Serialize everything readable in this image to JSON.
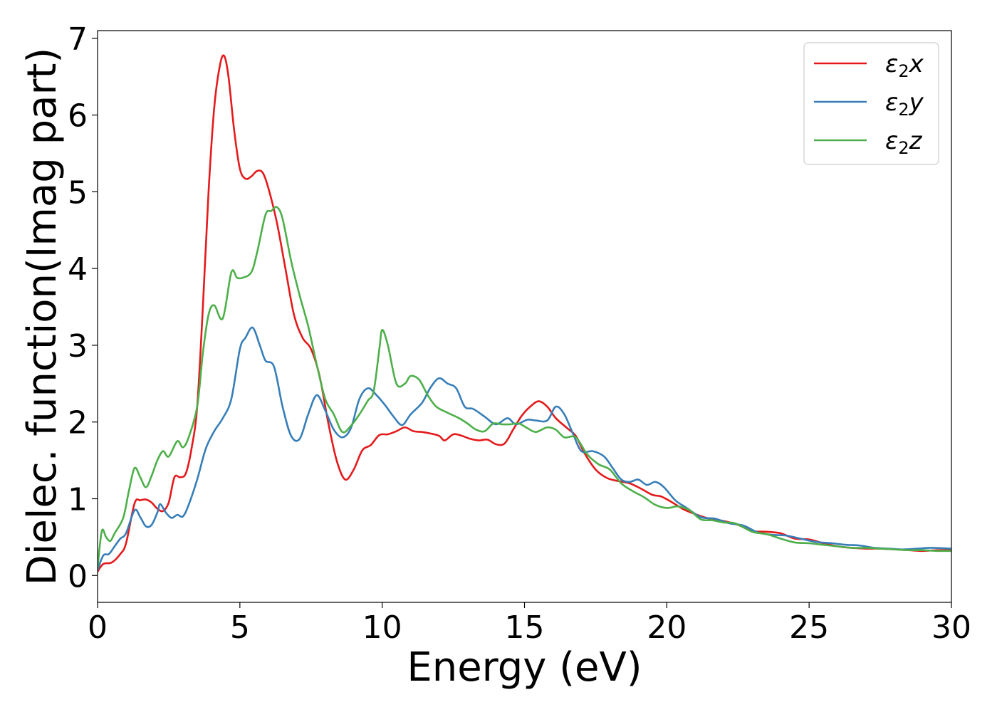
{
  "chart_data": {
    "type": "line",
    "xlabel": "Energy (eV)",
    "ylabel": "Dielec. function(Imag part)",
    "xlim": [
      0,
      30
    ],
    "ylim": [
      -0.35,
      7.1
    ],
    "xticks": [
      0,
      5,
      10,
      15,
      20,
      25,
      30
    ],
    "yticks": [
      0,
      1,
      2,
      3,
      4,
      5,
      6,
      7
    ],
    "grid": false,
    "legend_position": "top-right",
    "series": [
      {
        "name": "ε₂x",
        "legend_base": "ε",
        "legend_sub": "2",
        "legend_var": "x",
        "color": "#e41a1c",
        "points": [
          [
            0,
            0.05
          ],
          [
            0.2,
            0.15
          ],
          [
            0.5,
            0.17
          ],
          [
            0.8,
            0.28
          ],
          [
            1.0,
            0.42
          ],
          [
            1.3,
            0.94
          ],
          [
            1.5,
            0.98
          ],
          [
            1.7,
            0.99
          ],
          [
            1.9,
            0.95
          ],
          [
            2.1,
            0.87
          ],
          [
            2.3,
            0.84
          ],
          [
            2.5,
            0.95
          ],
          [
            2.7,
            1.28
          ],
          [
            2.9,
            1.28
          ],
          [
            3.1,
            1.33
          ],
          [
            3.3,
            1.65
          ],
          [
            3.5,
            2.2
          ],
          [
            3.7,
            3.5
          ],
          [
            3.9,
            5.0
          ],
          [
            4.1,
            6.1
          ],
          [
            4.3,
            6.65
          ],
          [
            4.45,
            6.77
          ],
          [
            4.6,
            6.5
          ],
          [
            4.8,
            5.8
          ],
          [
            5.0,
            5.3
          ],
          [
            5.2,
            5.17
          ],
          [
            5.4,
            5.2
          ],
          [
            5.6,
            5.27
          ],
          [
            5.8,
            5.25
          ],
          [
            6.0,
            5.05
          ],
          [
            6.3,
            4.6
          ],
          [
            6.6,
            4.0
          ],
          [
            6.9,
            3.4
          ],
          [
            7.2,
            3.1
          ],
          [
            7.5,
            2.95
          ],
          [
            7.8,
            2.6
          ],
          [
            8.1,
            2.0
          ],
          [
            8.4,
            1.5
          ],
          [
            8.7,
            1.25
          ],
          [
            9.0,
            1.38
          ],
          [
            9.3,
            1.63
          ],
          [
            9.6,
            1.7
          ],
          [
            9.9,
            1.83
          ],
          [
            10.2,
            1.84
          ],
          [
            10.5,
            1.88
          ],
          [
            10.8,
            1.93
          ],
          [
            11.1,
            1.88
          ],
          [
            11.4,
            1.87
          ],
          [
            11.7,
            1.85
          ],
          [
            12.0,
            1.82
          ],
          [
            12.2,
            1.76
          ],
          [
            12.5,
            1.84
          ],
          [
            12.8,
            1.82
          ],
          [
            13.1,
            1.78
          ],
          [
            13.4,
            1.76
          ],
          [
            13.7,
            1.77
          ],
          [
            14.0,
            1.71
          ],
          [
            14.3,
            1.72
          ],
          [
            14.6,
            1.9
          ],
          [
            14.9,
            2.08
          ],
          [
            15.2,
            2.2
          ],
          [
            15.5,
            2.27
          ],
          [
            15.8,
            2.2
          ],
          [
            16.1,
            2.05
          ],
          [
            16.5,
            1.92
          ],
          [
            16.8,
            1.82
          ],
          [
            17.1,
            1.6
          ],
          [
            17.5,
            1.38
          ],
          [
            17.9,
            1.27
          ],
          [
            18.3,
            1.23
          ],
          [
            18.7,
            1.2
          ],
          [
            19.1,
            1.13
          ],
          [
            19.5,
            1.05
          ],
          [
            19.8,
            1.03
          ],
          [
            20.2,
            0.95
          ],
          [
            20.6,
            0.86
          ],
          [
            21.0,
            0.8
          ],
          [
            21.5,
            0.74
          ],
          [
            22.0,
            0.71
          ],
          [
            22.5,
            0.66
          ],
          [
            23.0,
            0.58
          ],
          [
            23.5,
            0.57
          ],
          [
            24.0,
            0.55
          ],
          [
            24.5,
            0.48
          ],
          [
            25.0,
            0.47
          ],
          [
            25.5,
            0.42
          ],
          [
            26.0,
            0.38
          ],
          [
            26.5,
            0.36
          ],
          [
            27.0,
            0.35
          ],
          [
            27.5,
            0.35
          ],
          [
            28.0,
            0.34
          ],
          [
            28.5,
            0.33
          ],
          [
            29.0,
            0.32
          ],
          [
            29.5,
            0.33
          ],
          [
            30,
            0.33
          ]
        ]
      },
      {
        "name": "ε₂y",
        "legend_base": "ε",
        "legend_sub": "2",
        "legend_var": "y",
        "color": "#377eb8",
        "points": [
          [
            0,
            0.07
          ],
          [
            0.2,
            0.26
          ],
          [
            0.4,
            0.28
          ],
          [
            0.6,
            0.38
          ],
          [
            0.8,
            0.48
          ],
          [
            1.0,
            0.55
          ],
          [
            1.3,
            0.85
          ],
          [
            1.5,
            0.76
          ],
          [
            1.7,
            0.64
          ],
          [
            1.9,
            0.66
          ],
          [
            2.1,
            0.82
          ],
          [
            2.2,
            0.93
          ],
          [
            2.4,
            0.82
          ],
          [
            2.6,
            0.75
          ],
          [
            2.8,
            0.79
          ],
          [
            3.0,
            0.77
          ],
          [
            3.2,
            0.92
          ],
          [
            3.5,
            1.25
          ],
          [
            3.8,
            1.65
          ],
          [
            4.1,
            1.88
          ],
          [
            4.4,
            2.05
          ],
          [
            4.7,
            2.3
          ],
          [
            5.0,
            2.95
          ],
          [
            5.2,
            3.1
          ],
          [
            5.45,
            3.23
          ],
          [
            5.7,
            3.0
          ],
          [
            5.9,
            2.8
          ],
          [
            6.2,
            2.72
          ],
          [
            6.5,
            2.2
          ],
          [
            6.8,
            1.82
          ],
          [
            7.1,
            1.78
          ],
          [
            7.4,
            2.1
          ],
          [
            7.7,
            2.35
          ],
          [
            8.0,
            2.15
          ],
          [
            8.3,
            1.9
          ],
          [
            8.6,
            1.8
          ],
          [
            8.9,
            1.92
          ],
          [
            9.2,
            2.3
          ],
          [
            9.5,
            2.44
          ],
          [
            9.8,
            2.35
          ],
          [
            10.1,
            2.22
          ],
          [
            10.4,
            2.07
          ],
          [
            10.7,
            1.96
          ],
          [
            11.0,
            2.1
          ],
          [
            11.4,
            2.25
          ],
          [
            11.7,
            2.45
          ],
          [
            12.0,
            2.57
          ],
          [
            12.3,
            2.5
          ],
          [
            12.6,
            2.44
          ],
          [
            12.9,
            2.2
          ],
          [
            13.2,
            2.17
          ],
          [
            13.6,
            2.07
          ],
          [
            14.0,
            1.97
          ],
          [
            14.4,
            2.05
          ],
          [
            14.7,
            1.97
          ],
          [
            15.1,
            2.03
          ],
          [
            15.4,
            2.02
          ],
          [
            15.8,
            2.02
          ],
          [
            16.1,
            2.2
          ],
          [
            16.4,
            2.1
          ],
          [
            16.7,
            1.85
          ],
          [
            17.0,
            1.62
          ],
          [
            17.4,
            1.62
          ],
          [
            17.8,
            1.55
          ],
          [
            18.1,
            1.4
          ],
          [
            18.4,
            1.25
          ],
          [
            18.7,
            1.22
          ],
          [
            19.0,
            1.25
          ],
          [
            19.3,
            1.18
          ],
          [
            19.6,
            1.22
          ],
          [
            19.9,
            1.15
          ],
          [
            20.3,
            0.98
          ],
          [
            20.7,
            0.88
          ],
          [
            21.2,
            0.76
          ],
          [
            21.7,
            0.74
          ],
          [
            22.2,
            0.68
          ],
          [
            22.7,
            0.65
          ],
          [
            23.2,
            0.56
          ],
          [
            23.7,
            0.53
          ],
          [
            24.2,
            0.52
          ],
          [
            24.7,
            0.48
          ],
          [
            25.2,
            0.44
          ],
          [
            25.8,
            0.42
          ],
          [
            26.3,
            0.4
          ],
          [
            26.8,
            0.39
          ],
          [
            27.3,
            0.36
          ],
          [
            27.8,
            0.35
          ],
          [
            28.3,
            0.34
          ],
          [
            28.8,
            0.35
          ],
          [
            29.3,
            0.36
          ],
          [
            30,
            0.35
          ]
        ]
      },
      {
        "name": "ε₂z",
        "legend_base": "ε",
        "legend_sub": "2",
        "legend_var": "z",
        "color": "#4daf4a",
        "points": [
          [
            0,
            0.1
          ],
          [
            0.15,
            0.58
          ],
          [
            0.3,
            0.5
          ],
          [
            0.45,
            0.45
          ],
          [
            0.6,
            0.55
          ],
          [
            0.9,
            0.75
          ],
          [
            1.1,
            1.1
          ],
          [
            1.3,
            1.4
          ],
          [
            1.5,
            1.28
          ],
          [
            1.7,
            1.15
          ],
          [
            1.9,
            1.3
          ],
          [
            2.1,
            1.5
          ],
          [
            2.3,
            1.62
          ],
          [
            2.5,
            1.55
          ],
          [
            2.8,
            1.75
          ],
          [
            3.0,
            1.67
          ],
          [
            3.2,
            1.8
          ],
          [
            3.5,
            2.2
          ],
          [
            3.7,
            2.9
          ],
          [
            3.9,
            3.4
          ],
          [
            4.1,
            3.52
          ],
          [
            4.4,
            3.35
          ],
          [
            4.7,
            3.95
          ],
          [
            4.9,
            3.88
          ],
          [
            5.1,
            3.88
          ],
          [
            5.4,
            3.95
          ],
          [
            5.6,
            4.2
          ],
          [
            5.9,
            4.7
          ],
          [
            6.1,
            4.75
          ],
          [
            6.3,
            4.8
          ],
          [
            6.5,
            4.65
          ],
          [
            6.8,
            4.1
          ],
          [
            7.1,
            3.65
          ],
          [
            7.4,
            3.25
          ],
          [
            7.7,
            2.75
          ],
          [
            8.0,
            2.3
          ],
          [
            8.3,
            2.1
          ],
          [
            8.6,
            1.87
          ],
          [
            8.9,
            1.95
          ],
          [
            9.2,
            2.1
          ],
          [
            9.5,
            2.28
          ],
          [
            9.7,
            2.4
          ],
          [
            9.9,
            2.95
          ],
          [
            10.0,
            3.2
          ],
          [
            10.2,
            3.0
          ],
          [
            10.5,
            2.5
          ],
          [
            10.8,
            2.5
          ],
          [
            11.0,
            2.6
          ],
          [
            11.3,
            2.55
          ],
          [
            11.6,
            2.35
          ],
          [
            11.9,
            2.2
          ],
          [
            12.3,
            2.12
          ],
          [
            12.7,
            2.05
          ],
          [
            13.0,
            1.98
          ],
          [
            13.3,
            1.9
          ],
          [
            13.6,
            1.88
          ],
          [
            13.9,
            1.98
          ],
          [
            14.2,
            1.97
          ],
          [
            14.5,
            1.97
          ],
          [
            14.8,
            1.98
          ],
          [
            15.1,
            1.92
          ],
          [
            15.4,
            1.87
          ],
          [
            15.8,
            1.93
          ],
          [
            16.1,
            1.9
          ],
          [
            16.4,
            1.8
          ],
          [
            16.8,
            1.8
          ],
          [
            17.2,
            1.58
          ],
          [
            17.6,
            1.45
          ],
          [
            18.0,
            1.38
          ],
          [
            18.4,
            1.2
          ],
          [
            18.8,
            1.1
          ],
          [
            19.2,
            1.02
          ],
          [
            19.6,
            0.92
          ],
          [
            20.0,
            0.88
          ],
          [
            20.4,
            0.9
          ],
          [
            20.8,
            0.85
          ],
          [
            21.2,
            0.73
          ],
          [
            21.6,
            0.72
          ],
          [
            22.0,
            0.69
          ],
          [
            22.4,
            0.68
          ],
          [
            23.0,
            0.57
          ],
          [
            23.5,
            0.54
          ],
          [
            24.0,
            0.48
          ],
          [
            24.5,
            0.43
          ],
          [
            25.0,
            0.42
          ],
          [
            25.5,
            0.4
          ],
          [
            26.0,
            0.38
          ],
          [
            26.5,
            0.36
          ],
          [
            27.0,
            0.36
          ],
          [
            27.5,
            0.35
          ],
          [
            28.0,
            0.34
          ],
          [
            28.5,
            0.33
          ],
          [
            29.0,
            0.33
          ],
          [
            29.5,
            0.32
          ],
          [
            30,
            0.32
          ]
        ]
      }
    ]
  }
}
